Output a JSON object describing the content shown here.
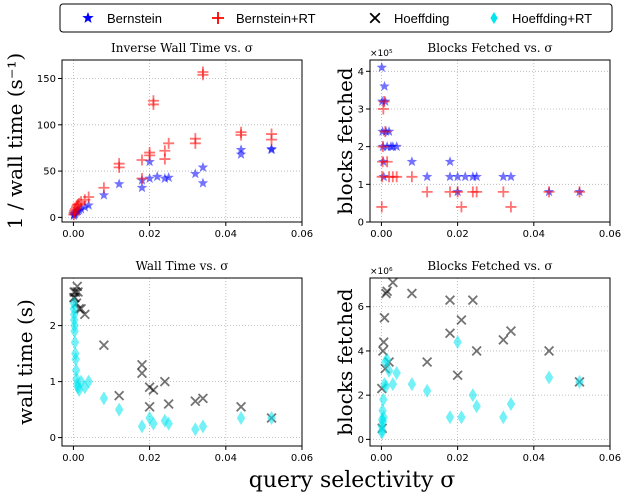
{
  "legend": {
    "items": [
      {
        "label": "Bernstein",
        "marker": "star",
        "color": "#0000ff"
      },
      {
        "label": "Bernstein+RT",
        "marker": "plus",
        "color": "#ff0000"
      },
      {
        "label": "Hoeffding",
        "marker": "x",
        "color": "#000000"
      },
      {
        "label": "Hoeffding+RT",
        "marker": "diamond",
        "color": "#00e5ee"
      }
    ]
  },
  "shared_xlabel": "query selectivity σ",
  "chart_data": [
    {
      "id": "p1",
      "type": "scatter",
      "title": "Inverse Wall Time vs. σ",
      "xlabel": "",
      "ylabel": "1 / wall time (s⁻¹)",
      "xlim": [
        -0.003,
        0.06
      ],
      "ylim": [
        -5,
        170
      ],
      "xticks": [
        "0.00",
        "0.02",
        "0.04",
        "0.06"
      ],
      "xtick_values": [
        0,
        0.02,
        0.04,
        0.06
      ],
      "yticks": [
        "0",
        "50",
        "100",
        "150"
      ],
      "ytick_values": [
        0,
        50,
        100,
        150
      ],
      "multiplier": "",
      "grid": true,
      "series": [
        {
          "name": "Bernstein",
          "marker": "star",
          "color": "#0000ff",
          "x": [
            0.0001,
            0.0002,
            0.0003,
            0.0005,
            0.0008,
            0.001,
            0.0012,
            0.0015,
            0.002,
            0.003,
            0.004,
            0.008,
            0.012,
            0.018,
            0.018,
            0.02,
            0.02,
            0.022,
            0.024,
            0.025,
            0.032,
            0.034,
            0.034,
            0.044,
            0.044,
            0.052,
            0.052
          ],
          "y": [
            2,
            3,
            4,
            5,
            6,
            7,
            7,
            8,
            9,
            11,
            13,
            24,
            36,
            32,
            40,
            42,
            60,
            44,
            42,
            43,
            47,
            37,
            54,
            68,
            73,
            73,
            74
          ]
        },
        {
          "name": "Bernstein+RT",
          "marker": "plus",
          "color": "#ff0000",
          "x": [
            0.0001,
            0.0002,
            0.0003,
            0.0005,
            0.0008,
            0.001,
            0.0012,
            0.0015,
            0.002,
            0.003,
            0.004,
            0.008,
            0.012,
            0.012,
            0.018,
            0.018,
            0.02,
            0.02,
            0.021,
            0.021,
            0.024,
            0.024,
            0.025,
            0.032,
            0.032,
            0.034,
            0.034,
            0.044,
            0.044,
            0.052,
            0.052
          ],
          "y": [
            3,
            5,
            7,
            9,
            11,
            13,
            14,
            15,
            17,
            19,
            22,
            32,
            54,
            58,
            62,
            42,
            67,
            70,
            122,
            126,
            63,
            72,
            80,
            80,
            85,
            154,
            157,
            89,
            92,
            84,
            90
          ]
        },
        {
          "name": "Hoeffding",
          "marker": "x",
          "color": "#000000",
          "x": [],
          "y": []
        },
        {
          "name": "Hoeffding+RT",
          "marker": "diamond",
          "color": "#00e5ee",
          "x": [],
          "y": []
        }
      ]
    },
    {
      "id": "p2",
      "type": "scatter",
      "title": "Blocks Fetched vs. σ",
      "xlabel": "",
      "ylabel": "blocks fetched",
      "xlim": [
        -0.003,
        0.06
      ],
      "ylim": [
        0,
        4.3
      ],
      "xticks": [
        "0.00",
        "0.02",
        "0.04",
        "0.06"
      ],
      "xtick_values": [
        0,
        0.02,
        0.04,
        0.06
      ],
      "yticks": [
        "0",
        "1",
        "2",
        "3",
        "4"
      ],
      "ytick_values": [
        0,
        1,
        2,
        3,
        4
      ],
      "multiplier": "×10⁵",
      "grid": true,
      "series": [
        {
          "name": "Bernstein",
          "marker": "star",
          "color": "#0000ff",
          "x": [
            0.0001,
            0.0002,
            0.0003,
            0.0004,
            0.0005,
            0.0006,
            0.0008,
            0.001,
            0.0012,
            0.0015,
            0.002,
            0.0025,
            0.003,
            0.004,
            0.008,
            0.012,
            0.018,
            0.018,
            0.02,
            0.02,
            0.022,
            0.024,
            0.025,
            0.032,
            0.034,
            0.044,
            0.052
          ],
          "y": [
            4.1,
            3.2,
            2.4,
            2.0,
            1.6,
            1.2,
            3.6,
            3.2,
            2.4,
            2.0,
            2.4,
            2.0,
            2.0,
            2.0,
            1.6,
            1.2,
            1.6,
            1.2,
            1.2,
            0.8,
            1.2,
            1.2,
            1.2,
            1.2,
            1.2,
            0.8,
            0.8
          ]
        },
        {
          "name": "Bernstein+RT",
          "marker": "plus",
          "color": "#ff0000",
          "x": [
            0.0001,
            0.0002,
            0.0003,
            0.0004,
            0.0005,
            0.0007,
            0.001,
            0.0015,
            0.002,
            0.003,
            0.004,
            0.008,
            0.012,
            0.018,
            0.02,
            0.021,
            0.024,
            0.025,
            0.032,
            0.034,
            0.044,
            0.052
          ],
          "y": [
            0.4,
            1.2,
            1.6,
            2.0,
            3.0,
            3.2,
            2.4,
            1.6,
            1.2,
            1.2,
            1.2,
            1.2,
            0.8,
            0.8,
            0.8,
            0.4,
            0.8,
            0.8,
            0.8,
            0.4,
            0.8,
            0.8
          ]
        },
        {
          "name": "Hoeffding",
          "marker": "x",
          "color": "#000000",
          "x": [],
          "y": []
        },
        {
          "name": "Hoeffding+RT",
          "marker": "diamond",
          "color": "#00e5ee",
          "x": [],
          "y": []
        }
      ]
    },
    {
      "id": "p3",
      "type": "scatter",
      "title": "Wall Time vs. σ",
      "xlabel": "",
      "ylabel": "wall time (s)",
      "xlim": [
        -0.003,
        0.06
      ],
      "ylim": [
        -0.15,
        2.85
      ],
      "xticks": [
        "0.00",
        "0.02",
        "0.04",
        "0.06"
      ],
      "xtick_values": [
        0,
        0.02,
        0.04,
        0.06
      ],
      "yticks": [
        "0",
        "1",
        "2"
      ],
      "ytick_values": [
        0,
        1,
        2
      ],
      "multiplier": "",
      "grid": true,
      "series": [
        {
          "name": "Bernstein",
          "marker": "star",
          "color": "#0000ff",
          "x": [],
          "y": []
        },
        {
          "name": "Bernstein+RT",
          "marker": "plus",
          "color": "#ff0000",
          "x": [],
          "y": []
        },
        {
          "name": "Hoeffding",
          "marker": "x",
          "color": "#000000",
          "x": [
            0.0001,
            0.0002,
            0.0004,
            0.0006,
            0.0008,
            0.001,
            0.0012,
            0.0015,
            0.002,
            0.003,
            0.008,
            0.012,
            0.018,
            0.018,
            0.02,
            0.02,
            0.021,
            0.024,
            0.025,
            0.032,
            0.034,
            0.044,
            0.052
          ],
          "y": [
            2.5,
            2.6,
            2.5,
            2.6,
            2.4,
            2.7,
            2.6,
            2.3,
            2.3,
            2.2,
            1.65,
            0.75,
            1.3,
            1.15,
            0.9,
            0.55,
            0.85,
            1.0,
            0.6,
            0.65,
            0.7,
            0.55,
            0.35
          ]
        },
        {
          "name": "Hoeffding+RT",
          "marker": "diamond",
          "color": "#00e5ee",
          "x": [
            0.0001,
            0.0001,
            0.0002,
            0.0002,
            0.0003,
            0.0003,
            0.0004,
            0.0005,
            0.0006,
            0.0007,
            0.0008,
            0.001,
            0.0012,
            0.0015,
            0.002,
            0.003,
            0.004,
            0.008,
            0.012,
            0.018,
            0.02,
            0.021,
            0.024,
            0.025,
            0.032,
            0.034,
            0.044,
            0.052
          ],
          "y": [
            2.4,
            2.3,
            2.2,
            2.1,
            2.0,
            1.9,
            1.7,
            1.5,
            1.4,
            1.2,
            1.05,
            0.95,
            0.9,
            0.85,
            1.0,
            0.9,
            1.0,
            0.7,
            0.5,
            0.2,
            0.35,
            0.25,
            0.3,
            0.25,
            0.15,
            0.2,
            0.35,
            0.35
          ]
        }
      ]
    },
    {
      "id": "p4",
      "type": "scatter",
      "title": "Blocks Fetched vs. σ",
      "xlabel": "",
      "ylabel": "blocks fetched",
      "xlim": [
        -0.003,
        0.06
      ],
      "ylim": [
        -0.3,
        7.3
      ],
      "xticks": [
        "0.00",
        "0.02",
        "0.04",
        "0.06"
      ],
      "xtick_values": [
        0,
        0.02,
        0.04,
        0.06
      ],
      "yticks": [
        "0",
        "2",
        "4",
        "6"
      ],
      "ytick_values": [
        0,
        2,
        4,
        6
      ],
      "multiplier": "×10⁶",
      "grid": true,
      "series": [
        {
          "name": "Bernstein",
          "marker": "star",
          "color": "#0000ff",
          "x": [],
          "y": []
        },
        {
          "name": "Bernstein+RT",
          "marker": "plus",
          "color": "#ff0000",
          "x": [],
          "y": []
        },
        {
          "name": "Hoeffding",
          "marker": "x",
          "color": "#000000",
          "x": [
            0.0001,
            0.0002,
            0.0004,
            0.0006,
            0.0008,
            0.001,
            0.0012,
            0.0015,
            0.002,
            0.003,
            0.008,
            0.012,
            0.018,
            0.018,
            0.02,
            0.021,
            0.024,
            0.025,
            0.032,
            0.034,
            0.044,
            0.052
          ],
          "y": [
            2.3,
            0.5,
            4.0,
            4.4,
            5.5,
            3.2,
            6.6,
            6.7,
            3.5,
            7.1,
            6.6,
            3.5,
            6.3,
            4.8,
            2.9,
            5.4,
            6.3,
            4.0,
            4.5,
            4.9,
            4.0,
            2.6
          ]
        },
        {
          "name": "Hoeffding+RT",
          "marker": "diamond",
          "color": "#00e5ee",
          "x": [
            0.0001,
            0.0001,
            0.0002,
            0.0002,
            0.0003,
            0.0004,
            0.0005,
            0.0006,
            0.0008,
            0.001,
            0.0012,
            0.0015,
            0.002,
            0.003,
            0.004,
            0.008,
            0.012,
            0.018,
            0.02,
            0.021,
            0.024,
            0.025,
            0.032,
            0.034,
            0.044,
            0.052
          ],
          "y": [
            0.3,
            0.6,
            0.9,
            0.4,
            1.3,
            0.8,
            1.8,
            1.0,
            2.5,
            3.5,
            2.4,
            3.6,
            3.1,
            2.5,
            3.0,
            2.5,
            2.2,
            1.0,
            4.4,
            1.0,
            2.0,
            1.5,
            1.0,
            1.6,
            2.8,
            2.6
          ]
        }
      ]
    }
  ]
}
